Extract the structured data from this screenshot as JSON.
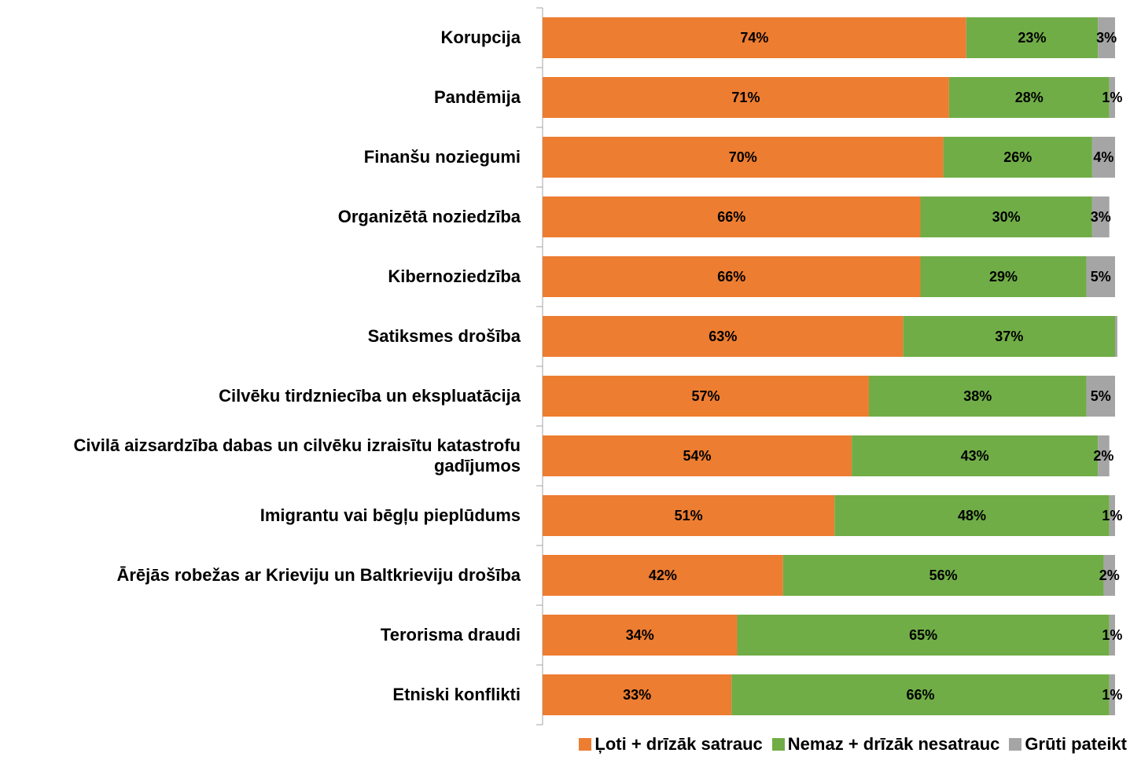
{
  "chart_data": {
    "type": "stacked_bar_horizontal",
    "categories": [
      "Korupcija",
      "Pandēmija",
      "Finanšu noziegumi",
      "Organizētā noziedzība",
      "Kibernoziedzība",
      "Satiksmes drošība",
      "Cilvēku tirdzniecība un ekspluatācija",
      "Civilā aizsardzība dabas un cilvēku izraisītu katastrofu gadījumos",
      "Imigrantu vai bēgļu pieplūdums",
      "Ārējās robežas ar Krieviju un Baltkrieviju drošība",
      "Terorisma draudi",
      "Etniski konflikti"
    ],
    "series": [
      {
        "name": "Ļoti + drīzāk satrauc",
        "color": "#ed7d31",
        "values": [
          74,
          71,
          70,
          66,
          66,
          63,
          57,
          54,
          51,
          42,
          34,
          33
        ],
        "value_labels": [
          "74%",
          "71%",
          "70%",
          "66%",
          "66%",
          "63%",
          "57%",
          "54%",
          "51%",
          "42%",
          "34%",
          "33%"
        ]
      },
      {
        "name": "Nemaz + drīzāk nesatrauc",
        "color": "#70ad47",
        "values": [
          23,
          28,
          26,
          30,
          29,
          37,
          38,
          43,
          48,
          56,
          65,
          66
        ],
        "value_labels": [
          "23%",
          "28%",
          "26%",
          "30%",
          "29%",
          "37%",
          "38%",
          "43%",
          "48%",
          "56%",
          "65%",
          "66%"
        ]
      },
      {
        "name": "Grūti pateikt",
        "color": "#a5a5a5",
        "values": [
          3,
          1,
          4,
          3,
          5,
          0.4,
          5,
          2,
          1,
          2,
          1,
          1
        ],
        "value_labels": [
          "3%",
          "1%",
          "4%",
          "3%",
          "5%",
          null,
          "5%",
          "2%",
          "1%",
          "2%",
          "1%",
          "1%"
        ]
      }
    ],
    "xlim": [
      0,
      100
    ],
    "legend": "bottom"
  }
}
